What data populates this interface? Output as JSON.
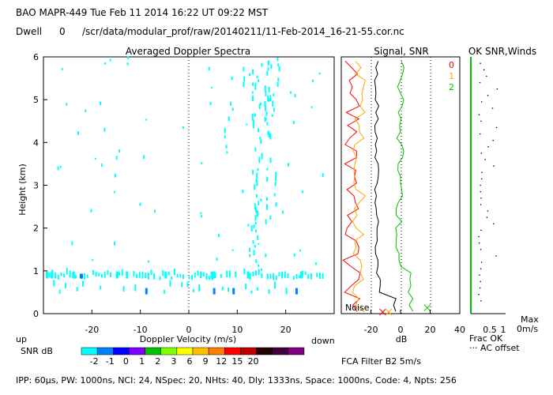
{
  "header": {
    "line1": "BAO   MAPR-449   Tue Feb 11 2014 16:22 UT 09:22 MST",
    "dwell_label": "Dwell",
    "dwell_value": "0",
    "path": "/scr/data/modular_prof/raw/20140211/11-Feb-2014_16-21-55.cor.nc"
  },
  "footer": {
    "params": "IPP:  60μs,  PW: 1000ns,  NCI:  24,  NSpec: 20, NHts: 40,  Dly: 1333ns,  Space: 1000ns,  Code: 4,  Npts: 256"
  },
  "colorbar": {
    "label": "SNR dB",
    "colors": [
      "#00ffff",
      "#0080ff",
      "#0000ff",
      "#8000ff",
      "#00c000",
      "#80ff00",
      "#ffff00",
      "#ffc000",
      "#ff8000",
      "#ff0000",
      "#c00000",
      "#200000",
      "#400040",
      "#800080"
    ],
    "ticks": [
      "-2",
      "-1",
      "0",
      "1",
      "2",
      "3",
      "6",
      "9",
      "12",
      "15",
      "20"
    ]
  },
  "chart_data": [
    {
      "type": "heatmap",
      "title": "Averaged Doppler Spectra",
      "xlabel": "Doppler Velocity (m/s)",
      "ylabel": "Height (km)",
      "xlim": [
        -30,
        30
      ],
      "ylim": [
        0,
        6
      ],
      "xticks": [
        "-20",
        "-10",
        "0",
        "10",
        "20"
      ],
      "yticks": [
        "0",
        "1",
        "2",
        "3",
        "4",
        "5",
        "6"
      ],
      "left_label": "up",
      "right_label": "down",
      "low_band_km": [
        0.4,
        1.0
      ],
      "main_column_velocity_ms": 14
    },
    {
      "type": "line",
      "title": "Signal, SNR",
      "xlabel": "dB",
      "xlim": [
        -40,
        40
      ],
      "ylim": [
        0,
        6
      ],
      "xticks": [
        "-20",
        "0",
        "20",
        "40"
      ],
      "noise_label": "Noise",
      "filter_label": "FCA Filter B2  5m/s",
      "legend": [
        {
          "name": "0",
          "color": "#ff0000"
        },
        {
          "name": "1",
          "color": "#ffa500"
        },
        {
          "name": "2",
          "color": "#00c000"
        }
      ],
      "series": [
        {
          "name": "signal",
          "color": "#000000"
        },
        {
          "name": "0",
          "color": "#ff0000"
        },
        {
          "name": "1",
          "color": "#ffa500"
        },
        {
          "name": "2",
          "color": "#00c000"
        }
      ],
      "markers": [
        {
          "name": "x-red",
          "x": -12,
          "y": 0.0,
          "color": "#ff0000"
        },
        {
          "name": "x-orange",
          "x": -8,
          "y": 0.0,
          "color": "#ffa500"
        },
        {
          "name": "x-green",
          "x": 18,
          "y": 0.1,
          "color": "#00c000"
        }
      ]
    },
    {
      "type": "scatter",
      "title": "OK SNR,Winds",
      "xticks": [
        "0.5",
        "1"
      ],
      "frac_label": "Frac OK",
      "offset_label": "··· AC offset",
      "max_label": "Max",
      "max_value": "0m/s"
    }
  ]
}
